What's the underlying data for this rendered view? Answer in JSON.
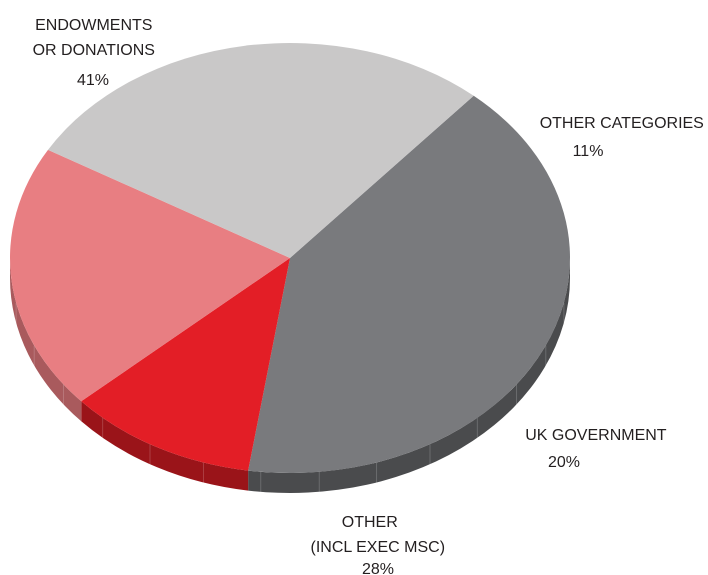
{
  "chart_data": {
    "type": "pie",
    "title": "",
    "slices": [
      {
        "label_lines": [
          "ENDOWMENTS",
          "OR DONATIONS"
        ],
        "value_label": "41%",
        "value": 41,
        "color": "#797a7d",
        "side_color": "#4a4b4d"
      },
      {
        "label_lines": [
          "OTHER CATEGORIES"
        ],
        "value_label": "11%",
        "value": 11,
        "color": "#e31e26",
        "side_color": "#9a1419"
      },
      {
        "label_lines": [
          "UK GOVERNMENT"
        ],
        "value_label": "20%",
        "value": 20,
        "color": "#e87e82",
        "side_color": "#a95a5d"
      },
      {
        "label_lines": [
          "OTHER",
          "(INCL EXEC MSC)"
        ],
        "value_label": "28%",
        "value": 28,
        "color": "#c9c8c8",
        "side_color": "#858585"
      }
    ]
  }
}
